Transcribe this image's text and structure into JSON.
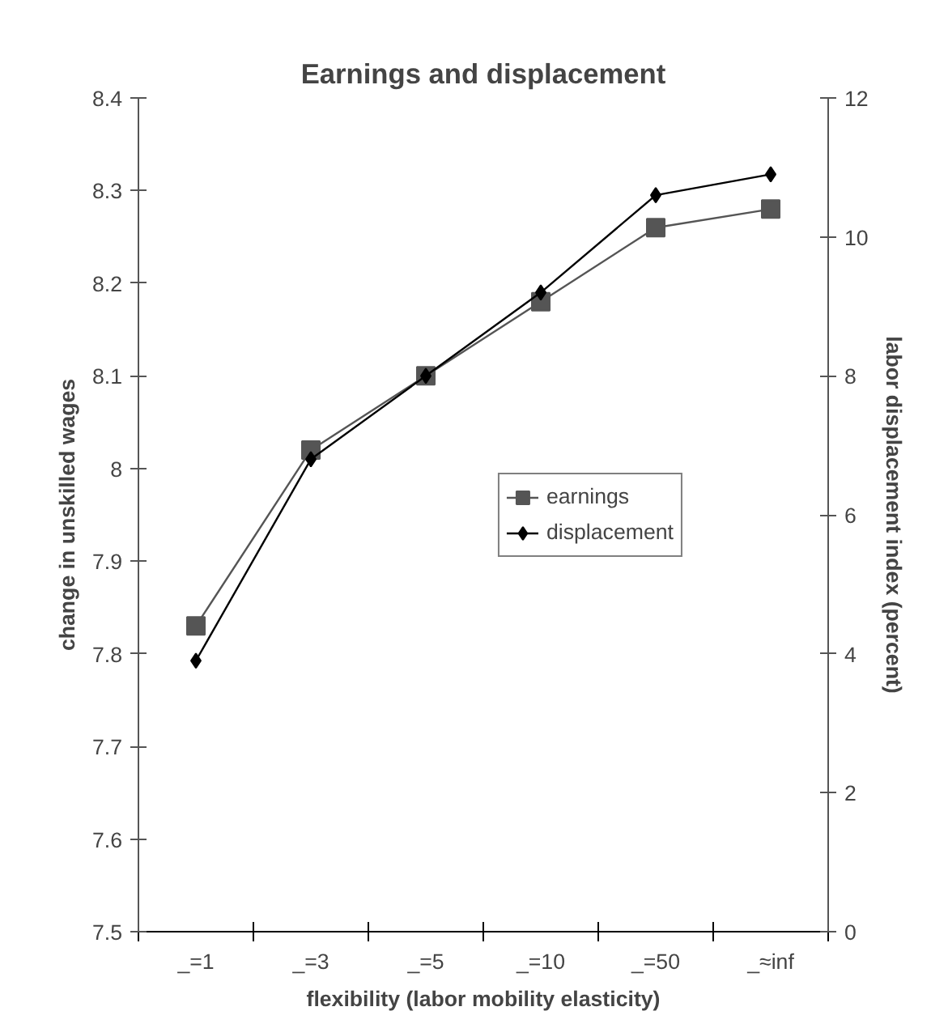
{
  "chart_data": {
    "type": "line",
    "title": "Earnings and displacement",
    "xlabel": "flexibility (labor mobility elasticity)",
    "ylabel": "change in unskilled wages",
    "y2label": "labor displacement index (percent)",
    "categories": [
      "_=1",
      "_=3",
      "_=5",
      "_=10",
      "_=50",
      "_≈inf"
    ],
    "series": [
      {
        "name": "earnings",
        "color": "#555555",
        "marker": "square",
        "values": [
          7.83,
          8.02,
          8.1,
          8.18,
          8.26,
          8.28
        ]
      },
      {
        "name": "displacement",
        "color": "#000000",
        "marker": "diamond",
        "axis": "y2",
        "values": [
          3.9,
          6.8,
          8.0,
          9.2,
          10.6,
          10.9
        ]
      }
    ],
    "ylim": [
      7.5,
      8.4
    ],
    "yticks": [
      7.5,
      7.6,
      7.7,
      7.8,
      7.9,
      8,
      8.1,
      8.2,
      8.3,
      8.4
    ],
    "y2lim": [
      0,
      12
    ],
    "y2ticks": [
      0,
      2,
      4,
      6,
      8,
      10,
      12
    ],
    "grid": false,
    "legend": "right",
    "line_style": "solid"
  }
}
